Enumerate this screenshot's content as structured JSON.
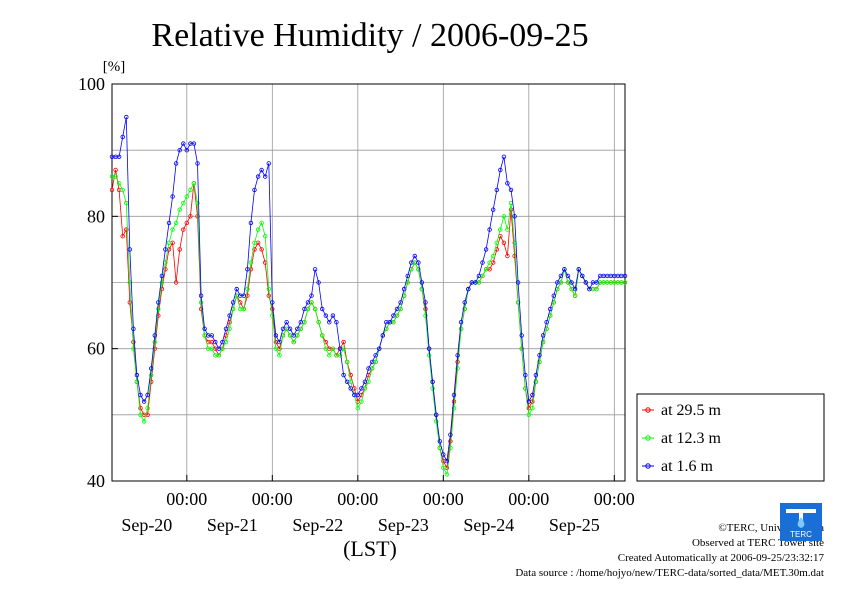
{
  "chart_data": {
    "type": "line",
    "title": "Relative Humidity / 2006-09-25",
    "yunit": "[%]",
    "xlabel": "(LST)",
    "ylim": [
      40,
      100
    ],
    "yticks": [
      "40",
      "60",
      "80",
      "100"
    ],
    "grid": true,
    "legend_position": "bottom-right",
    "x_hours_range": [
      0,
      144
    ],
    "time_ticks": [
      {
        "hour": 21,
        "time": "00:00",
        "date": "Sep-20"
      },
      {
        "hour": 45,
        "time": "00:00",
        "date": "Sep-21"
      },
      {
        "hour": 69,
        "time": "00:00",
        "date": "Sep-22"
      },
      {
        "hour": 93,
        "time": "00:00",
        "date": "Sep-23"
      },
      {
        "hour": 117,
        "time": "00:00",
        "date": "Sep-24"
      },
      {
        "hour": 141,
        "time": "00:00",
        "date": "Sep-25"
      }
    ],
    "series": [
      {
        "name": "at 29.5 m",
        "color": "#ff0000",
        "x": [
          0,
          1,
          2,
          3,
          4,
          5,
          6,
          7,
          8,
          9,
          10,
          11,
          12,
          13,
          14,
          15,
          16,
          17,
          18,
          19,
          20,
          21,
          22,
          23,
          24,
          25,
          26,
          27,
          28,
          29,
          30,
          31,
          32,
          33,
          34,
          35,
          36,
          37,
          38,
          39,
          40,
          41,
          42,
          43,
          44,
          45,
          46,
          47,
          48,
          49,
          50,
          51,
          52,
          53,
          54,
          55,
          56,
          57,
          58,
          59,
          60,
          61,
          62,
          63,
          64,
          65,
          66,
          67,
          68,
          69,
          70,
          71,
          72,
          73,
          74,
          75,
          76,
          77,
          78,
          79,
          80,
          81,
          82,
          83,
          84,
          85,
          86,
          87,
          88,
          89,
          90,
          91,
          92,
          93,
          94,
          95,
          96,
          97,
          98,
          99,
          100,
          101,
          102,
          103,
          104,
          105,
          106,
          107,
          108,
          109,
          110,
          111,
          112,
          113,
          114,
          115,
          116,
          117,
          118,
          119,
          120,
          121,
          122,
          123,
          124,
          125,
          126,
          127,
          128,
          129,
          130,
          131,
          132,
          133,
          134,
          135,
          136,
          137,
          138,
          139,
          140,
          141,
          142,
          143,
          144
        ],
        "values": [
          84,
          87,
          84,
          77,
          78,
          67,
          61,
          55,
          51,
          50,
          50,
          55,
          60,
          65,
          69,
          72,
          75,
          76,
          70,
          75,
          78,
          79,
          80,
          85,
          80,
          66,
          62,
          61,
          61,
          60,
          59,
          60,
          62,
          64,
          66,
          68,
          67,
          66,
          68,
          72,
          75,
          76,
          75,
          73,
          68,
          66,
          61,
          60,
          62,
          63,
          62,
          61,
          62,
          63,
          64,
          66,
          67,
          66,
          64,
          62,
          61,
          60,
          60,
          59,
          60,
          61,
          58,
          56,
          54,
          52,
          53,
          54,
          56,
          57,
          58,
          60,
          62,
          63,
          64,
          64,
          65,
          66,
          68,
          70,
          72,
          73,
          72,
          69,
          66,
          60,
          55,
          50,
          45,
          43,
          42,
          46,
          52,
          58,
          63,
          66,
          69,
          70,
          70,
          70,
          71,
          72,
          72,
          73,
          75,
          77,
          76,
          74,
          81,
          74,
          67,
          60,
          54,
          51,
          52,
          55,
          58,
          61,
          63,
          65,
          67,
          69,
          70,
          72,
          70,
          69,
          68,
          72,
          71,
          70,
          69,
          69,
          69,
          70,
          70,
          70,
          70,
          70,
          70,
          70,
          70
        ]
      },
      {
        "name": "at 12.3 m",
        "color": "#00ff00",
        "x": [
          0,
          1,
          2,
          3,
          4,
          5,
          6,
          7,
          8,
          9,
          10,
          11,
          12,
          13,
          14,
          15,
          16,
          17,
          18,
          19,
          20,
          21,
          22,
          23,
          24,
          25,
          26,
          27,
          28,
          29,
          30,
          31,
          32,
          33,
          34,
          35,
          36,
          37,
          38,
          39,
          40,
          41,
          42,
          43,
          44,
          45,
          46,
          47,
          48,
          49,
          50,
          51,
          52,
          53,
          54,
          55,
          56,
          57,
          58,
          59,
          60,
          61,
          62,
          63,
          64,
          65,
          66,
          67,
          68,
          69,
          70,
          71,
          72,
          73,
          74,
          75,
          76,
          77,
          78,
          79,
          80,
          81,
          82,
          83,
          84,
          85,
          86,
          87,
          88,
          89,
          90,
          91,
          92,
          93,
          94,
          95,
          96,
          97,
          98,
          99,
          100,
          101,
          102,
          103,
          104,
          105,
          106,
          107,
          108,
          109,
          110,
          111,
          112,
          113,
          114,
          115,
          116,
          117,
          118,
          119,
          120,
          121,
          122,
          123,
          124,
          125,
          126,
          127,
          128,
          129,
          130,
          131,
          132,
          133,
          134,
          135,
          136,
          137,
          138,
          139,
          140,
          141,
          142,
          143,
          144
        ],
        "values": [
          86,
          86,
          85,
          84,
          82,
          70,
          60,
          55,
          50,
          49,
          51,
          56,
          61,
          66,
          70,
          73,
          76,
          78,
          79,
          81,
          82,
          83,
          84,
          85,
          82,
          67,
          62,
          60,
          60,
          59,
          59,
          60,
          61,
          63,
          66,
          68,
          66,
          66,
          69,
          73,
          76,
          78,
          79,
          77,
          69,
          65,
          60,
          59,
          62,
          63,
          62,
          61,
          62,
          63,
          64,
          66,
          67,
          66,
          64,
          62,
          60,
          59,
          60,
          59,
          59,
          60,
          58,
          55,
          53,
          51,
          52,
          54,
          55,
          57,
          58,
          60,
          62,
          63,
          64,
          64,
          65,
          66,
          68,
          70,
          72,
          73,
          72,
          69,
          65,
          59,
          54,
          49,
          45,
          42,
          41,
          45,
          51,
          57,
          63,
          66,
          69,
          70,
          70,
          70,
          71,
          72,
          73,
          74,
          76,
          78,
          80,
          78,
          82,
          76,
          67,
          60,
          54,
          50,
          51,
          55,
          58,
          61,
          63,
          65,
          67,
          69,
          70,
          72,
          70,
          69,
          68,
          72,
          71,
          70,
          69,
          69,
          69,
          70,
          70,
          70,
          70,
          70,
          70,
          70,
          70
        ]
      },
      {
        "name": "at 1.6 m",
        "color": "#0000ff",
        "x": [
          0,
          1,
          2,
          3,
          4,
          5,
          6,
          7,
          8,
          9,
          10,
          11,
          12,
          13,
          14,
          15,
          16,
          17,
          18,
          19,
          20,
          21,
          22,
          23,
          24,
          25,
          26,
          27,
          28,
          29,
          30,
          31,
          32,
          33,
          34,
          35,
          36,
          37,
          38,
          39,
          40,
          41,
          42,
          43,
          44,
          45,
          46,
          47,
          48,
          49,
          50,
          51,
          52,
          53,
          54,
          55,
          56,
          57,
          58,
          59,
          60,
          61,
          62,
          63,
          64,
          65,
          66,
          67,
          68,
          69,
          70,
          71,
          72,
          73,
          74,
          75,
          76,
          77,
          78,
          79,
          80,
          81,
          82,
          83,
          84,
          85,
          86,
          87,
          88,
          89,
          90,
          91,
          92,
          93,
          94,
          95,
          96,
          97,
          98,
          99,
          100,
          101,
          102,
          103,
          104,
          105,
          106,
          107,
          108,
          109,
          110,
          111,
          112,
          113,
          114,
          115,
          116,
          117,
          118,
          119,
          120,
          121,
          122,
          123,
          124,
          125,
          126,
          127,
          128,
          129,
          130,
          131,
          132,
          133,
          134,
          135,
          136,
          137,
          138,
          139,
          140,
          141,
          142,
          143,
          144
        ],
        "values": [
          89,
          89,
          89,
          92,
          95,
          75,
          63,
          56,
          53,
          52,
          53,
          57,
          62,
          67,
          71,
          75,
          79,
          83,
          88,
          90,
          91,
          90,
          91,
          91,
          88,
          68,
          63,
          62,
          62,
          61,
          60,
          61,
          63,
          65,
          67,
          69,
          68,
          68,
          72,
          79,
          84,
          86,
          87,
          86,
          88,
          67,
          62,
          61,
          63,
          64,
          63,
          62,
          63,
          64,
          66,
          67,
          68,
          72,
          70,
          66,
          65,
          64,
          65,
          64,
          60,
          56,
          55,
          54,
          53,
          53,
          54,
          55,
          57,
          58,
          59,
          60,
          62,
          64,
          64,
          65,
          66,
          67,
          69,
          71,
          73,
          74,
          73,
          70,
          67,
          60,
          55,
          50,
          46,
          44,
          43,
          47,
          53,
          59,
          64,
          67,
          69,
          70,
          70,
          71,
          73,
          75,
          78,
          81,
          84,
          87,
          89,
          85,
          84,
          80,
          70,
          62,
          56,
          52,
          53,
          56,
          59,
          62,
          64,
          66,
          68,
          70,
          71,
          72,
          71,
          70,
          69,
          72,
          71,
          70,
          69,
          70,
          70,
          71,
          71,
          71,
          71,
          71,
          71,
          71,
          71
        ]
      }
    ]
  },
  "footer": {
    "copyright": "©TERC, Univ. Tsukuba",
    "observed": "Observed at TERC Tower site",
    "created": "Created Automatically at 2006-09-25/23:32:17",
    "source": "Data source : /home/hojyo/new/TERC-data/sorted_data/MET.30m.dat"
  },
  "logo": {
    "text": "TERC"
  }
}
